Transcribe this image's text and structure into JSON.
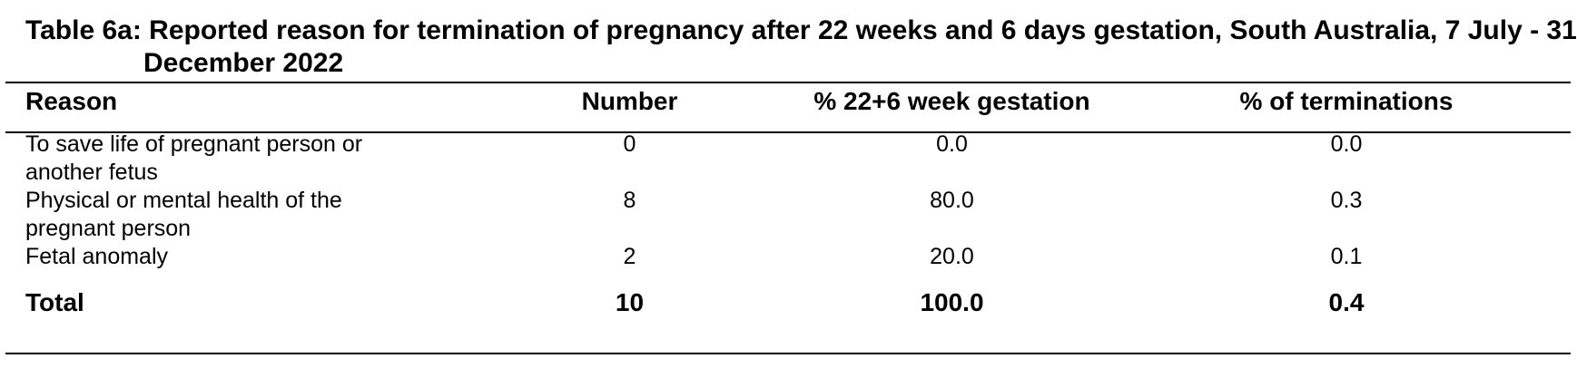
{
  "table": {
    "title": "Table 6a: Reported reason for termination of pregnancy after 22 weeks and 6 days gestation, South Australia, 7 July - 31 December 2022",
    "headers": [
      "Reason",
      "Number",
      "% 22+6 week gestation",
      "% of terminations"
    ],
    "rows": [
      {
        "reason": "To save life of pregnant person or another fetus",
        "number": "0",
        "pct_gestation": "0.0",
        "pct_terminations": "0.0"
      },
      {
        "reason": "Physical or mental health of the pregnant person",
        "number": "8",
        "pct_gestation": "80.0",
        "pct_terminations": "0.3"
      },
      {
        "reason": "Fetal anomaly",
        "number": "2",
        "pct_gestation": "20.0",
        "pct_terminations": "0.1"
      }
    ],
    "total": {
      "reason": "Total",
      "number": "10",
      "pct_gestation": "100.0",
      "pct_terminations": "0.4"
    }
  }
}
